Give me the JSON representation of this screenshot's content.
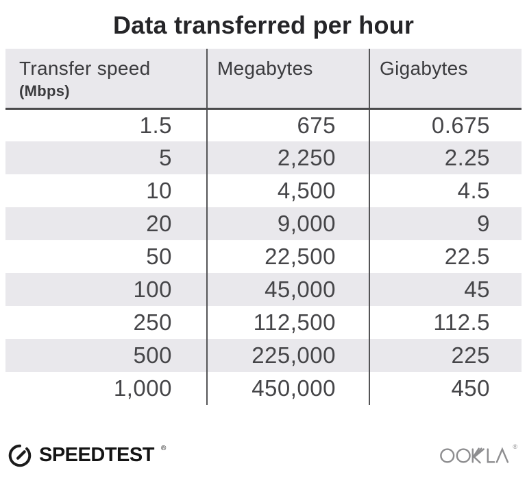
{
  "title": "Data transferred per hour",
  "table": {
    "columns": [
      {
        "label": "Transfer speed",
        "sublabel": "(Mbps)"
      },
      {
        "label": "Megabytes",
        "sublabel": ""
      },
      {
        "label": "Gigabytes",
        "sublabel": ""
      }
    ],
    "rows": [
      [
        "1.5",
        "675",
        "0.675"
      ],
      [
        "5",
        "2,250",
        "2.25"
      ],
      [
        "10",
        "4,500",
        "4.5"
      ],
      [
        "20",
        "9,000",
        "9"
      ],
      [
        "50",
        "22,500",
        "22.5"
      ],
      [
        "100",
        "45,000",
        "45"
      ],
      [
        "250",
        "112,500",
        "112.5"
      ],
      [
        "500",
        "225,000",
        "225"
      ],
      [
        "1,000",
        "450,000",
        "450"
      ]
    ]
  },
  "chart_data": {
    "type": "table",
    "title": "Data transferred per hour",
    "columns": [
      "Transfer speed (Mbps)",
      "Megabytes",
      "Gigabytes"
    ],
    "rows": [
      [
        1.5,
        675,
        0.675
      ],
      [
        5,
        2250,
        2.25
      ],
      [
        10,
        4500,
        4.5
      ],
      [
        20,
        9000,
        9
      ],
      [
        50,
        22500,
        22.5
      ],
      [
        100,
        45000,
        45
      ],
      [
        250,
        112500,
        112.5
      ],
      [
        500,
        225000,
        225
      ],
      [
        1000,
        450000,
        450
      ]
    ]
  },
  "footer": {
    "speedtest_label": "SPEEDTEST",
    "speedtest_trademark": "®",
    "ookla_label": "OOKLA",
    "ookla_trademark": "®"
  },
  "colors": {
    "header_bg": "#e9e8ec",
    "row_alt_bg": "#e9e8ec",
    "column_divider": "#545456",
    "header_rule": "#4a4a4c",
    "title_text": "#252528",
    "body_text": "#454548",
    "speedtest_black": "#141414",
    "ookla_gray": "#8d8d8f"
  }
}
